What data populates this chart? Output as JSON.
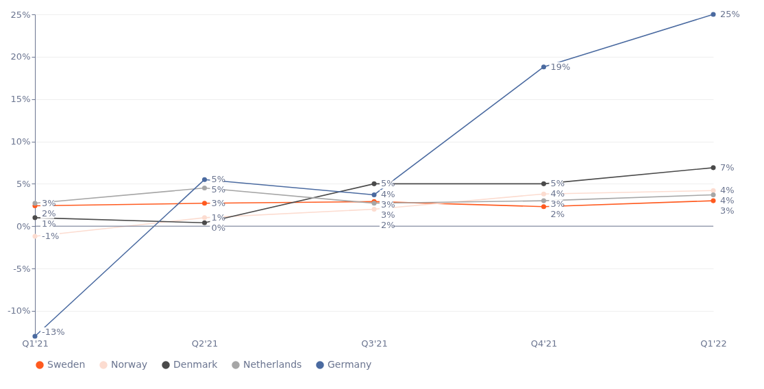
{
  "chart_data": {
    "type": "line",
    "categories": [
      "Q1'21",
      "Q2'21",
      "Q3'21",
      "Q4'21",
      "Q1'22"
    ],
    "ylim": [
      -13,
      25
    ],
    "yticks": [
      {
        "value": -10,
        "label": "-10%"
      },
      {
        "value": -5,
        "label": "-5%"
      },
      {
        "value": 0,
        "label": "0%"
      },
      {
        "value": 5,
        "label": "5%"
      },
      {
        "value": 10,
        "label": "10%"
      },
      {
        "value": 15,
        "label": "15%"
      },
      {
        "value": 20,
        "label": "20%"
      },
      {
        "value": 25,
        "label": "25%"
      }
    ],
    "grid": "y",
    "legend": "bottom",
    "marker": "circle",
    "ref_lines": [
      {
        "axis": "y",
        "value": 0
      }
    ],
    "series": [
      {
        "name": "Sweden",
        "color": "#ff5a1f",
        "values": [
          2.4,
          2.7,
          2.9,
          2.3,
          3.0
        ],
        "value_labels": [
          "2%",
          "3%",
          "3%",
          "2%",
          "3%"
        ]
      },
      {
        "name": "Norway",
        "color": "#fcdcd0",
        "values": [
          -1.2,
          1.0,
          2.0,
          3.8,
          4.2
        ],
        "value_labels": [
          "-1%",
          "1%",
          "2%",
          "4%",
          "4%"
        ]
      },
      {
        "name": "Denmark",
        "color": "#4a4a4a",
        "values": [
          1.0,
          0.4,
          5.0,
          5.0,
          6.9
        ],
        "value_labels": [
          "1%",
          "0%",
          "5%",
          "5%",
          "7%"
        ]
      },
      {
        "name": "Netherlands",
        "color": "#a6a6a6",
        "values": [
          2.7,
          4.5,
          2.7,
          3.0,
          3.7
        ],
        "value_labels": [
          "3%",
          "5%",
          "3%",
          "3%",
          "4%"
        ]
      },
      {
        "name": "Germany",
        "color": "#4a6aa0",
        "values": [
          -13,
          5.5,
          3.7,
          18.8,
          25
        ],
        "value_labels": [
          "-13%",
          "5%",
          "4%",
          "19%",
          "25%"
        ]
      }
    ]
  }
}
